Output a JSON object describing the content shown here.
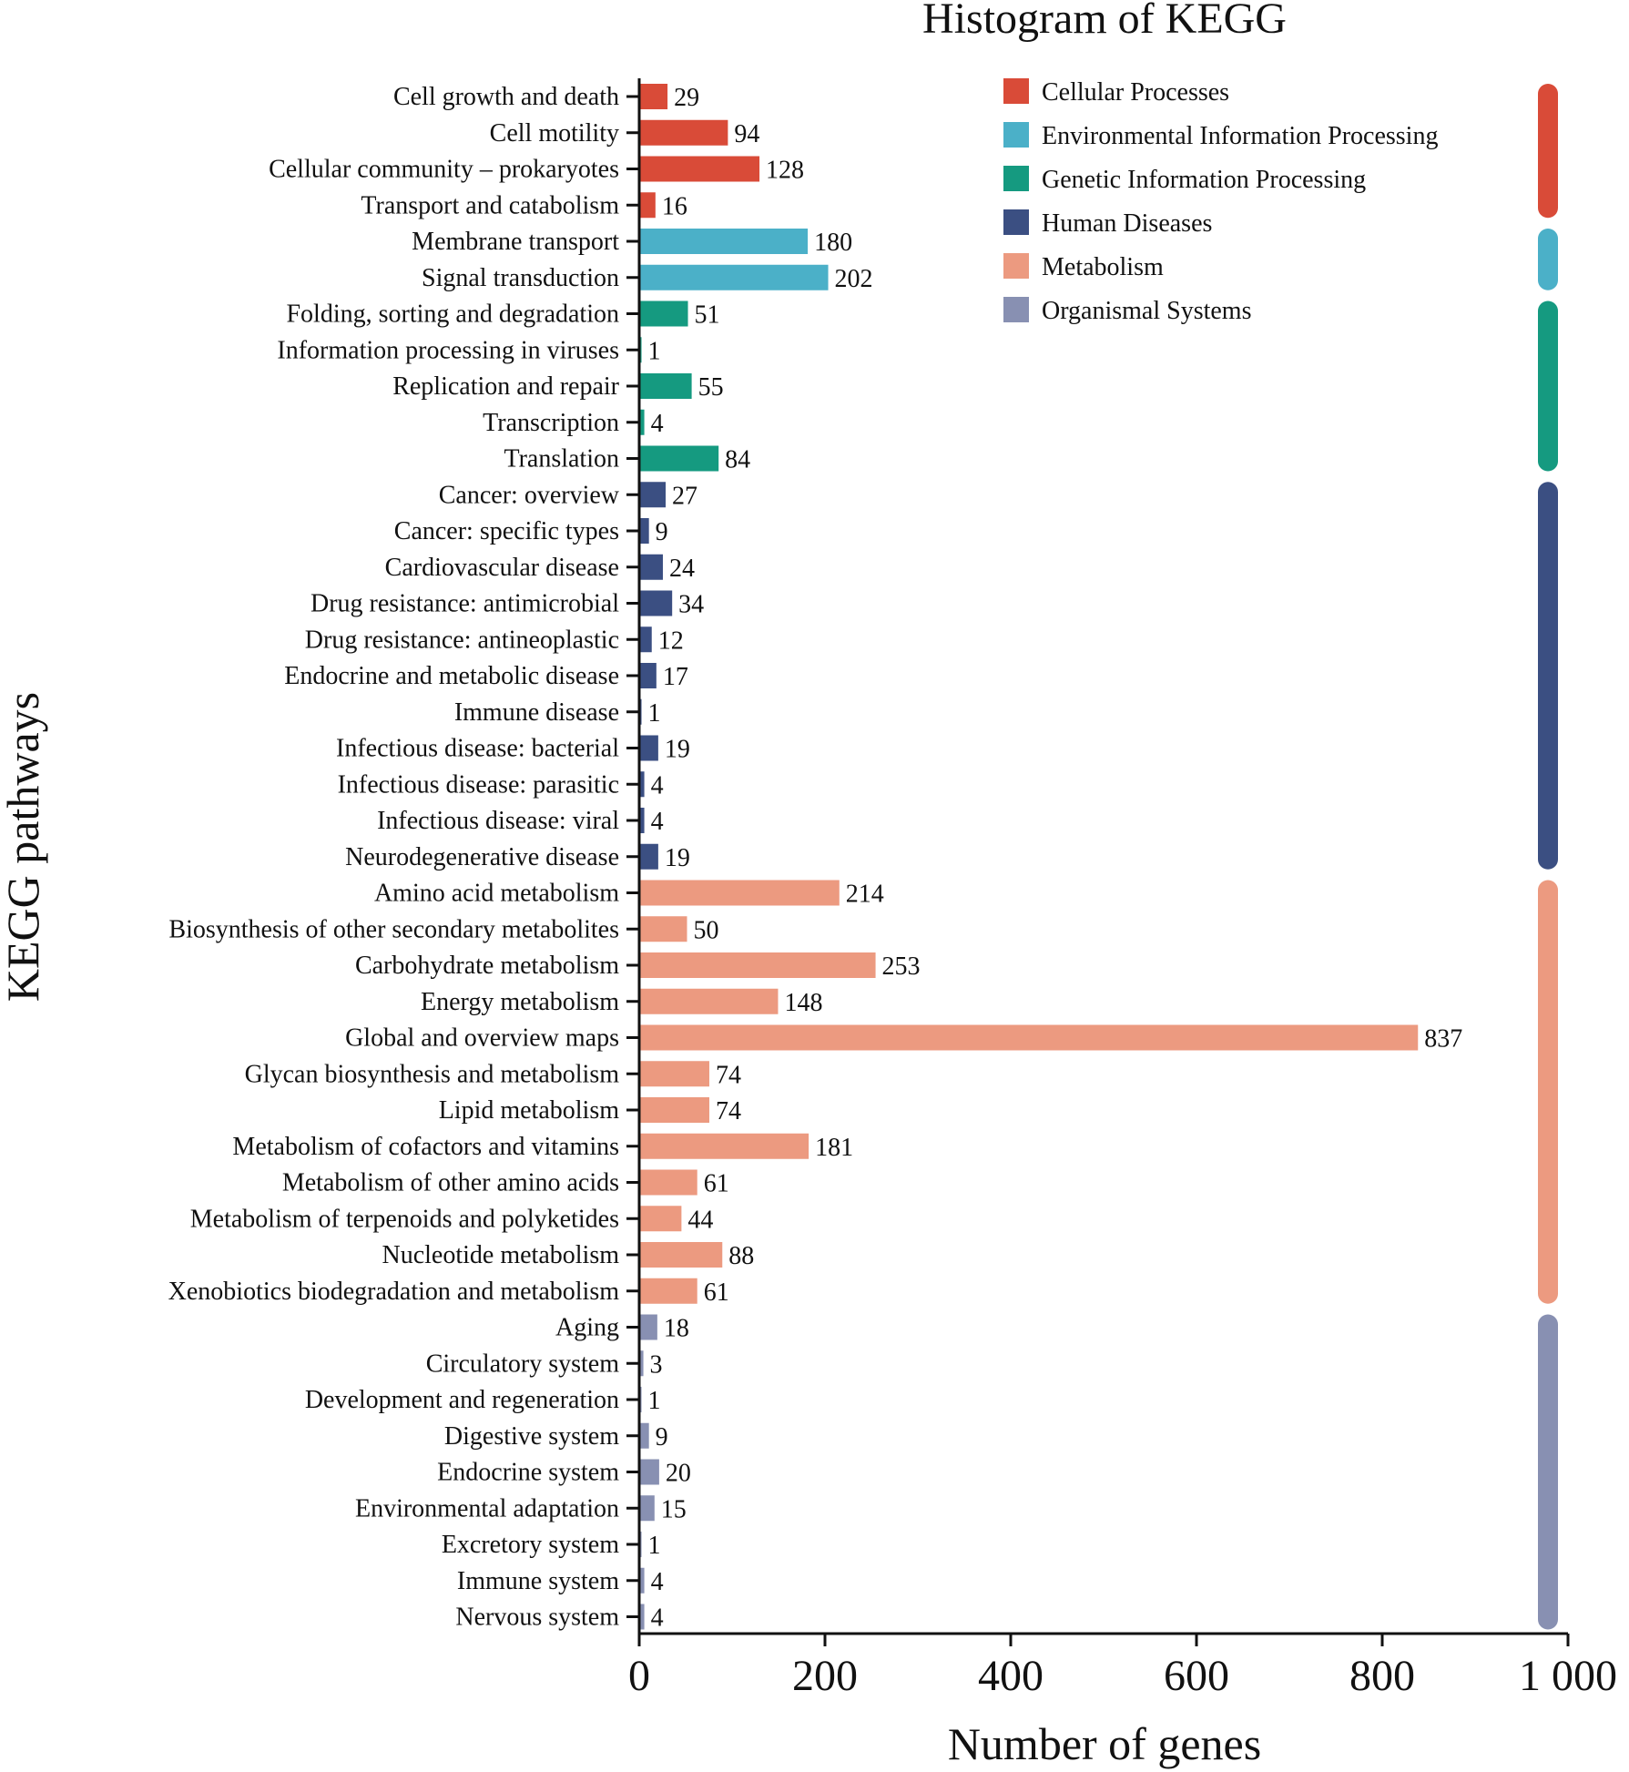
{
  "chart_data": {
    "type": "bar",
    "orientation": "horizontal",
    "title": "Histogram of KEGG",
    "xlabel": "Number of genes",
    "ylabel": "KEGG pathways",
    "xlim": [
      0,
      1000
    ],
    "xticks": [
      0,
      200,
      400,
      600,
      800,
      1000
    ],
    "xtick_labels": [
      "0",
      "200",
      "400",
      "600",
      "800",
      "1 000"
    ],
    "grid": false,
    "legend_position": "top-right",
    "groups": [
      {
        "name": "Cellular Processes",
        "color": "#d94b38"
      },
      {
        "name": "Environmental Information Processing",
        "color": "#4bb0c8"
      },
      {
        "name": "Genetic Information Processing",
        "color": "#159a80"
      },
      {
        "name": "Human Diseases",
        "color": "#3b4f82"
      },
      {
        "name": "Metabolism",
        "color": "#ec9a80"
      },
      {
        "name": "Organismal Systems",
        "color": "#8890b2"
      }
    ],
    "categories": [
      "Cell growth and death",
      "Cell motility",
      "Cellular community – prokaryotes",
      "Transport and catabolism",
      "Membrane transport",
      "Signal transduction",
      "Folding, sorting and degradation",
      "Information processing in viruses",
      "Replication and repair",
      "Transcription",
      "Translation",
      "Cancer: overview",
      "Cancer: specific types",
      "Cardiovascular disease",
      "Drug resistance: antimicrobial",
      "Drug resistance: antineoplastic",
      "Endocrine and metabolic disease",
      "Immune disease",
      "Infectious disease: bacterial",
      "Infectious disease: parasitic",
      "Infectious disease: viral",
      "Neurodegenerative disease",
      "Amino acid metabolism",
      "Biosynthesis of other secondary metabolites",
      "Carbohydrate metabolism",
      "Energy metabolism",
      "Global and overview maps",
      "Glycan biosynthesis and metabolism",
      "Lipid metabolism",
      "Metabolism of cofactors and vitamins",
      "Metabolism of other amino acids",
      "Metabolism of terpenoids and polyketides",
      "Nucleotide metabolism",
      "Xenobiotics biodegradation and metabolism",
      "Aging",
      "Circulatory system",
      "Development and regeneration",
      "Digestive system",
      "Endocrine system",
      "Environmental adaptation",
      "Excretory system",
      "Immune system",
      "Nervous system"
    ],
    "values": [
      29,
      94,
      128,
      16,
      180,
      202,
      51,
      1,
      55,
      4,
      84,
      27,
      9,
      24,
      34,
      12,
      17,
      1,
      19,
      4,
      4,
      19,
      214,
      50,
      253,
      148,
      837,
      74,
      74,
      181,
      61,
      44,
      88,
      61,
      18,
      3,
      1,
      9,
      20,
      15,
      1,
      4,
      4
    ],
    "value_labels": [
      "29",
      "94",
      "128",
      "16",
      "180",
      "202",
      "51",
      "1",
      "55",
      "4",
      "84",
      "27",
      "9",
      "24",
      "34",
      "12",
      "17",
      "1",
      "19",
      "4",
      "4",
      "19",
      "214",
      "50",
      "253",
      "148",
      "837",
      "74",
      "74",
      "181",
      "61",
      "44",
      "88",
      "61",
      "18",
      "3",
      "1",
      "9",
      "20",
      "15",
      "1",
      "4",
      "4"
    ],
    "group_index": [
      0,
      0,
      0,
      0,
      1,
      1,
      2,
      2,
      2,
      2,
      2,
      3,
      3,
      3,
      3,
      3,
      3,
      3,
      3,
      3,
      3,
      3,
      4,
      4,
      4,
      4,
      4,
      4,
      4,
      4,
      4,
      4,
      4,
      4,
      5,
      5,
      5,
      5,
      5,
      5,
      5,
      5,
      5
    ]
  }
}
